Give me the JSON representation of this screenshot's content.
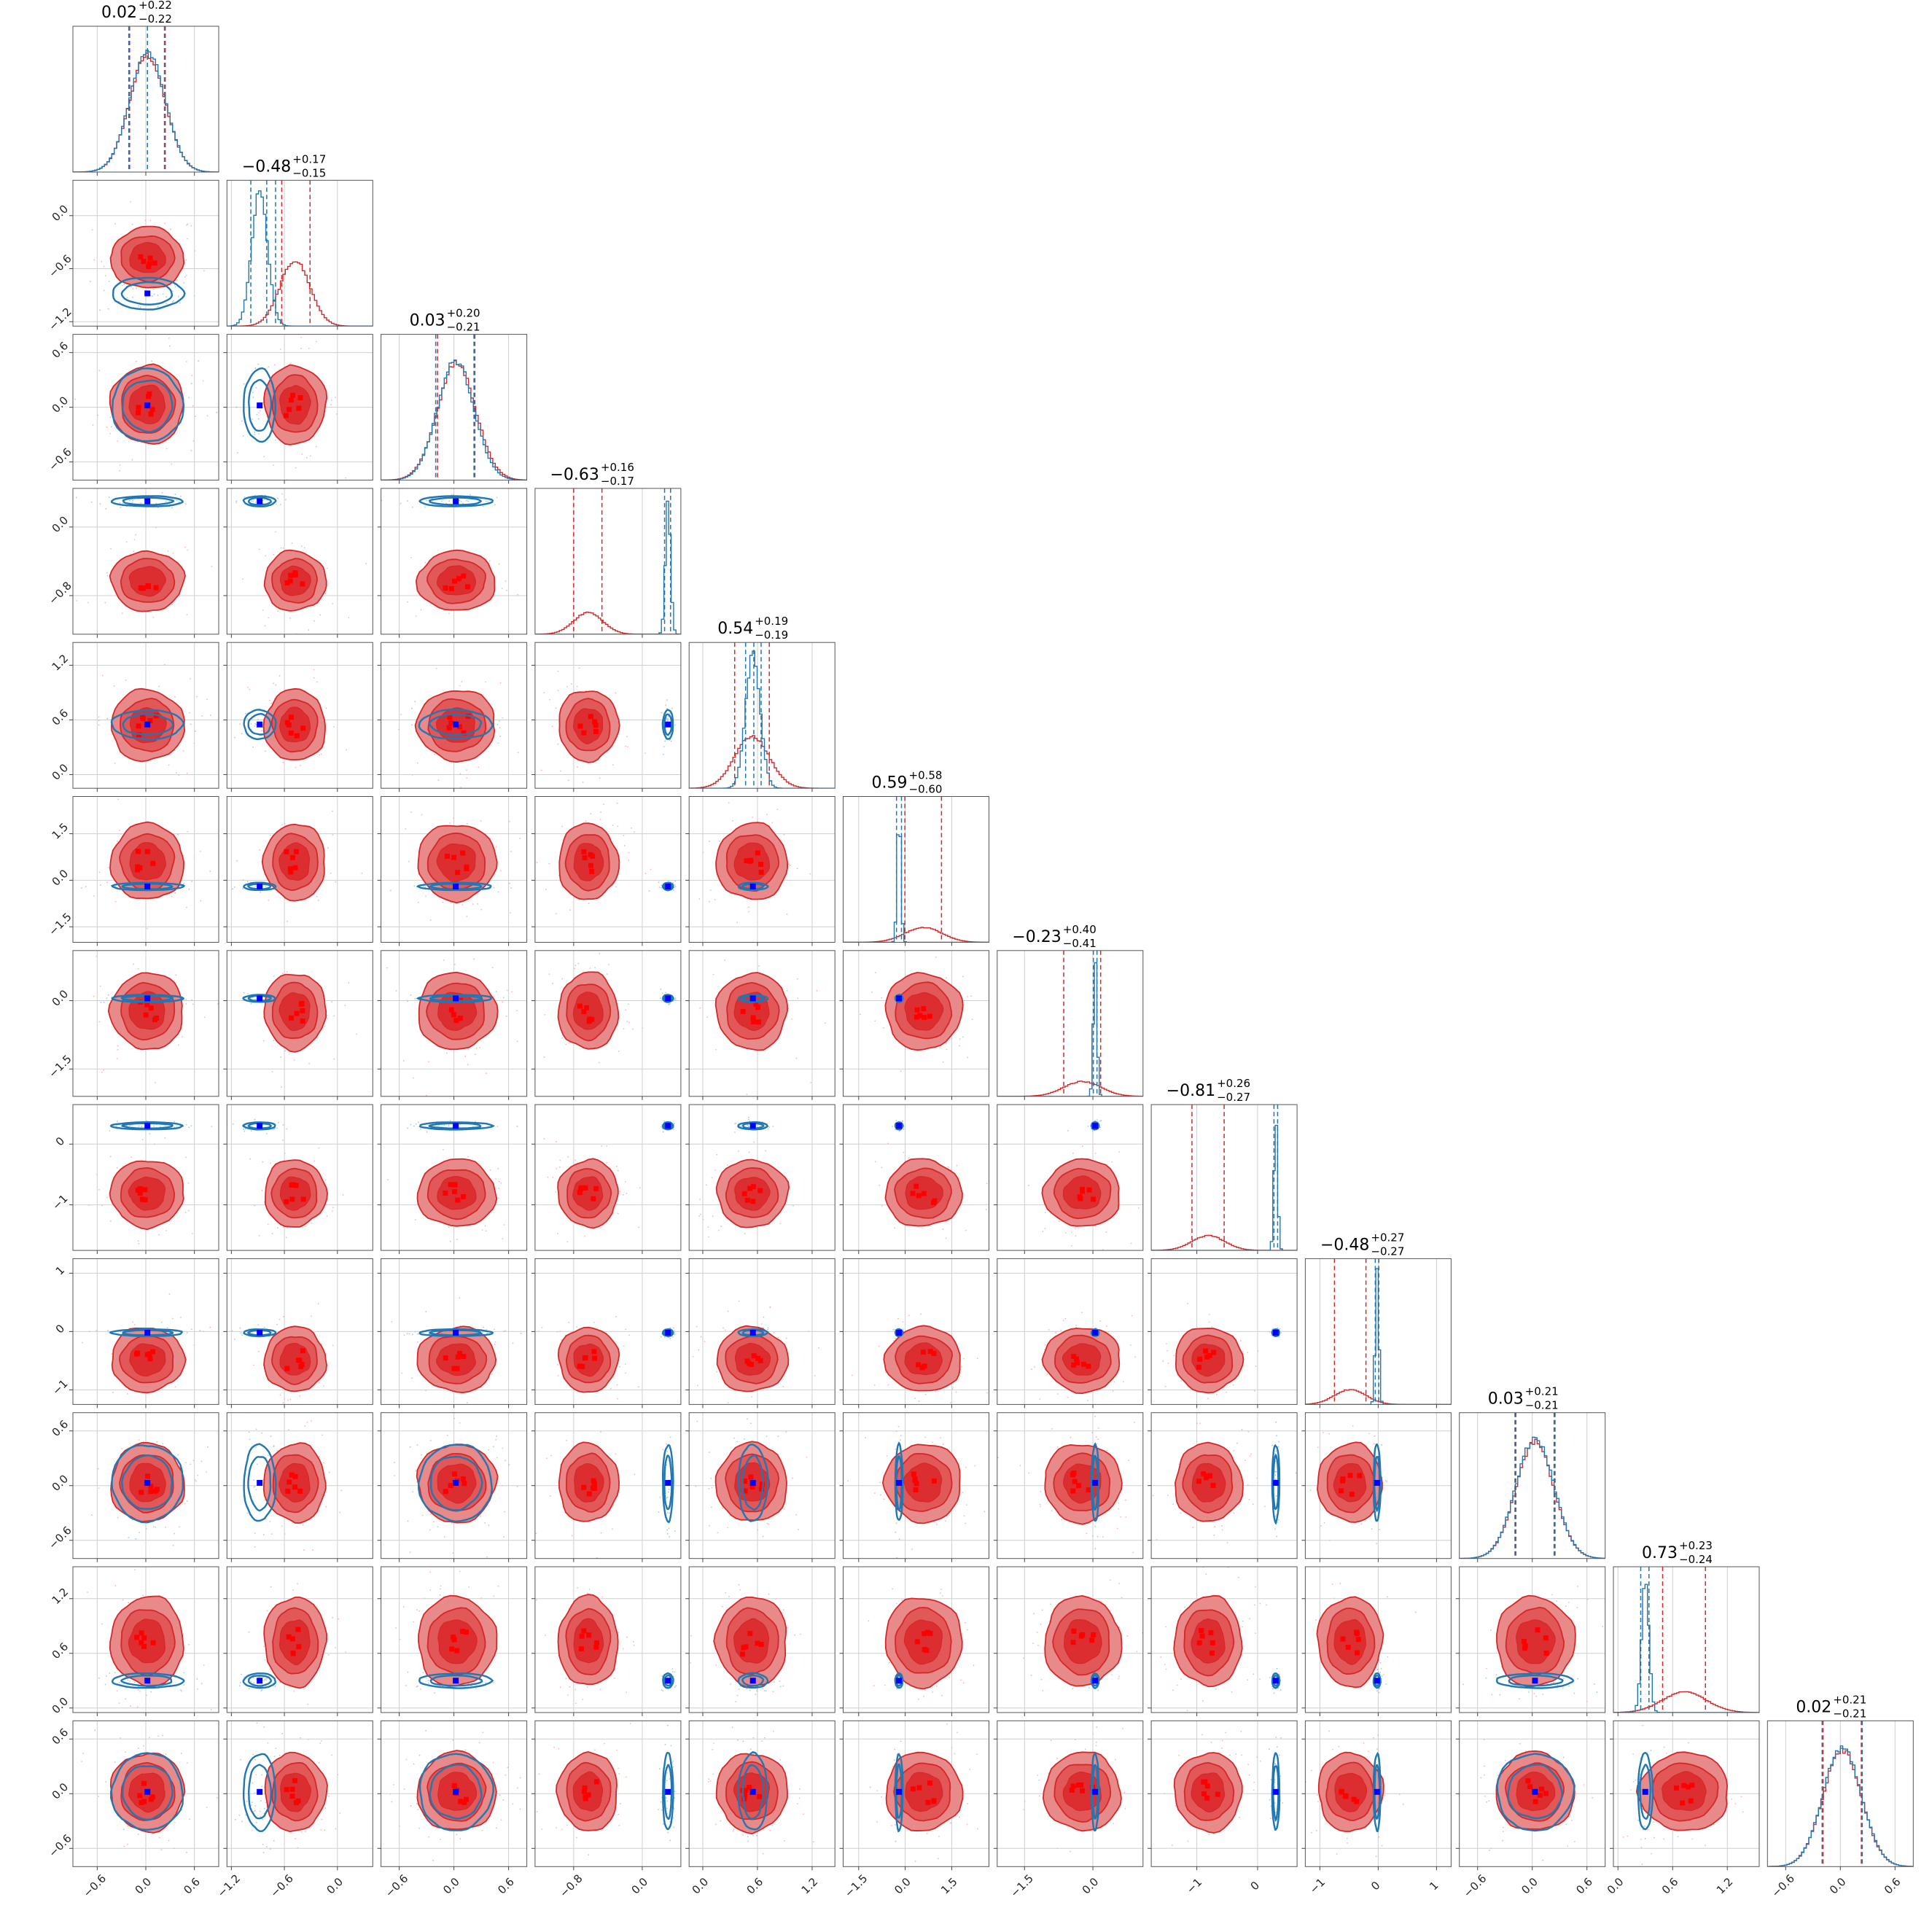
{
  "chart_data": {
    "type": "corner",
    "grid": true,
    "colors": {
      "red_line": "#d62728",
      "red_fill_outer": "#e8898a",
      "red_fill_inner": "#dc2e30",
      "blue_line": "#1f77b4",
      "red_marker": "#ff0000",
      "blue_marker": "#0000ff"
    },
    "parameters": [
      {
        "title_value": "0.02",
        "err_plus": "+0.22",
        "err_minus": "−0.22",
        "range": [
          -0.9,
          0.9
        ],
        "ticks": [
          "-0.6",
          "0.0",
          "0.6"
        ],
        "red": {
          "mean": 0.02,
          "std": 0.22
        },
        "blue": {
          "mean": 0.02,
          "std": 0.22
        },
        "red_quantiles": [
          -0.2,
          0.24
        ],
        "blue_quantiles": [
          -0.21,
          0.02,
          0.23
        ]
      },
      {
        "title_value": "−0.48",
        "err_plus": "+0.17",
        "err_minus": "−0.15",
        "range": [
          -1.25,
          0.4
        ],
        "ticks": [
          "-1.2",
          "-0.6",
          "0.0"
        ],
        "red": {
          "mean": -0.48,
          "std": 0.17
        },
        "blue": {
          "mean": -0.88,
          "std": 0.09
        },
        "red_quantiles": [
          -0.63,
          -0.31
        ],
        "blue_quantiles": [
          -0.98,
          -0.8,
          -0.7
        ]
      },
      {
        "title_value": "0.03",
        "err_plus": "+0.20",
        "err_minus": "−0.21",
        "range": [
          -0.8,
          0.8
        ],
        "ticks": [
          "-0.6",
          "0.0",
          "0.6"
        ],
        "red": {
          "mean": 0.03,
          "std": 0.21
        },
        "blue": {
          "mean": 0.02,
          "std": 0.2
        },
        "red_quantiles": [
          -0.18,
          0.23
        ],
        "blue_quantiles": [
          -0.2,
          0.22
        ]
      },
      {
        "title_value": "−0.63",
        "err_plus": "+0.16",
        "err_minus": "−0.17",
        "range": [
          -1.25,
          0.45
        ],
        "ticks": [
          "-0.8",
          "0.0"
        ],
        "red": {
          "mean": -0.63,
          "std": 0.17
        },
        "blue": {
          "mean": 0.3,
          "std": 0.03
        },
        "red_quantiles": [
          -0.8,
          -0.47
        ],
        "blue_quantiles": [
          0.26,
          0.33
        ]
      },
      {
        "title_value": "0.54",
        "err_plus": "+0.19",
        "err_minus": "−0.19",
        "range": [
          -0.15,
          1.45
        ],
        "ticks": [
          "0.0",
          "0.6",
          "1.2"
        ],
        "red": {
          "mean": 0.54,
          "std": 0.19
        },
        "blue": {
          "mean": 0.55,
          "std": 0.08
        },
        "red_quantiles": [
          0.35,
          0.73
        ],
        "blue_quantiles": [
          0.47,
          0.56,
          0.64
        ]
      },
      {
        "title_value": "0.59",
        "err_plus": "+0.58",
        "err_minus": "−0.60",
        "range": [
          -2.0,
          2.7
        ],
        "ticks": [
          "-1.5",
          "0.0",
          "1.5"
        ],
        "red": {
          "mean": 0.59,
          "std": 0.6
        },
        "blue": {
          "mean": -0.2,
          "std": 0.06
        },
        "red_quantiles": [
          -0.01,
          1.17
        ],
        "blue_quantiles": [
          -0.28,
          -0.12
        ]
      },
      {
        "title_value": "−0.23",
        "err_plus": "+0.40",
        "err_minus": "−0.41",
        "range": [
          -2.1,
          1.1
        ],
        "ticks": [
          "-1.5",
          "0.0"
        ],
        "red": {
          "mean": -0.23,
          "std": 0.41
        },
        "blue": {
          "mean": 0.05,
          "std": 0.04
        },
        "red_quantiles": [
          -0.64,
          0.17
        ],
        "blue_quantiles": [
          0.01,
          0.09
        ]
      },
      {
        "title_value": "−0.81",
        "err_plus": "+0.26",
        "err_minus": "−0.27",
        "range": [
          -1.75,
          0.65
        ],
        "ticks": [
          "-1",
          "0"
        ],
        "red": {
          "mean": -0.81,
          "std": 0.27
        },
        "blue": {
          "mean": 0.3,
          "std": 0.03
        },
        "red_quantiles": [
          -1.08,
          -0.55
        ],
        "blue_quantiles": [
          0.27,
          0.33
        ]
      },
      {
        "title_value": "−0.48",
        "err_plus": "+0.27",
        "err_minus": "−0.27",
        "range": [
          -1.25,
          1.25
        ],
        "ticks": [
          "-1",
          "0",
          "1"
        ],
        "red": {
          "mean": -0.48,
          "std": 0.27
        },
        "blue": {
          "mean": -0.02,
          "std": 0.03
        },
        "red_quantiles": [
          -0.75,
          -0.21
        ],
        "blue_quantiles": [
          -0.05,
          0.01
        ]
      },
      {
        "title_value": "0.03",
        "err_plus": "+0.21",
        "err_minus": "−0.21",
        "range": [
          -0.8,
          0.8
        ],
        "ticks": [
          "-0.6",
          "0.0",
          "0.6"
        ],
        "red": {
          "mean": 0.03,
          "std": 0.21
        },
        "blue": {
          "mean": 0.03,
          "std": 0.21
        },
        "red_quantiles": [
          -0.18,
          0.24
        ],
        "blue_quantiles": [
          -0.19,
          0.25
        ]
      },
      {
        "title_value": "0.73",
        "err_plus": "+0.23",
        "err_minus": "−0.24",
        "range": [
          -0.05,
          1.55
        ],
        "ticks": [
          "0.0",
          "0.6",
          "1.2"
        ],
        "red": {
          "mean": 0.73,
          "std": 0.24
        },
        "blue": {
          "mean": 0.3,
          "std": 0.04
        },
        "red_quantiles": [
          0.49,
          0.96
        ],
        "blue_quantiles": [
          0.25,
          0.34
        ]
      },
      {
        "title_value": "0.02",
        "err_plus": "+0.21",
        "err_minus": "−0.21",
        "range": [
          -0.8,
          0.8
        ],
        "ticks": [
          "-0.6",
          "0.0",
          "0.6"
        ],
        "red": {
          "mean": 0.02,
          "std": 0.21
        },
        "blue": {
          "mean": 0.02,
          "std": 0.21
        },
        "red_quantiles": [
          -0.19,
          0.23
        ],
        "blue_quantiles": [
          -0.2,
          0.24
        ]
      }
    ],
    "y_tick_labels": {
      "1": [
        "-1.2",
        "-0.6",
        "0.0"
      ],
      "2": [
        "-0.6",
        "0.0",
        "0.6"
      ],
      "3": [
        "-0.8",
        "0.0"
      ],
      "4": [
        "0.0",
        "0.6",
        "1.2"
      ],
      "5": [
        "-1.5",
        "0.0",
        "1.5"
      ],
      "6": [
        "-1.5",
        "0.0"
      ],
      "7": [
        "-1",
        "0"
      ],
      "8": [
        "-1",
        "0",
        "1"
      ],
      "9": [
        "-0.6",
        "0.0",
        "0.6"
      ],
      "10": [
        "0.0",
        "0.6",
        "1.2"
      ],
      "11": [
        "-0.6",
        "0.0",
        "0.6"
      ]
    }
  }
}
